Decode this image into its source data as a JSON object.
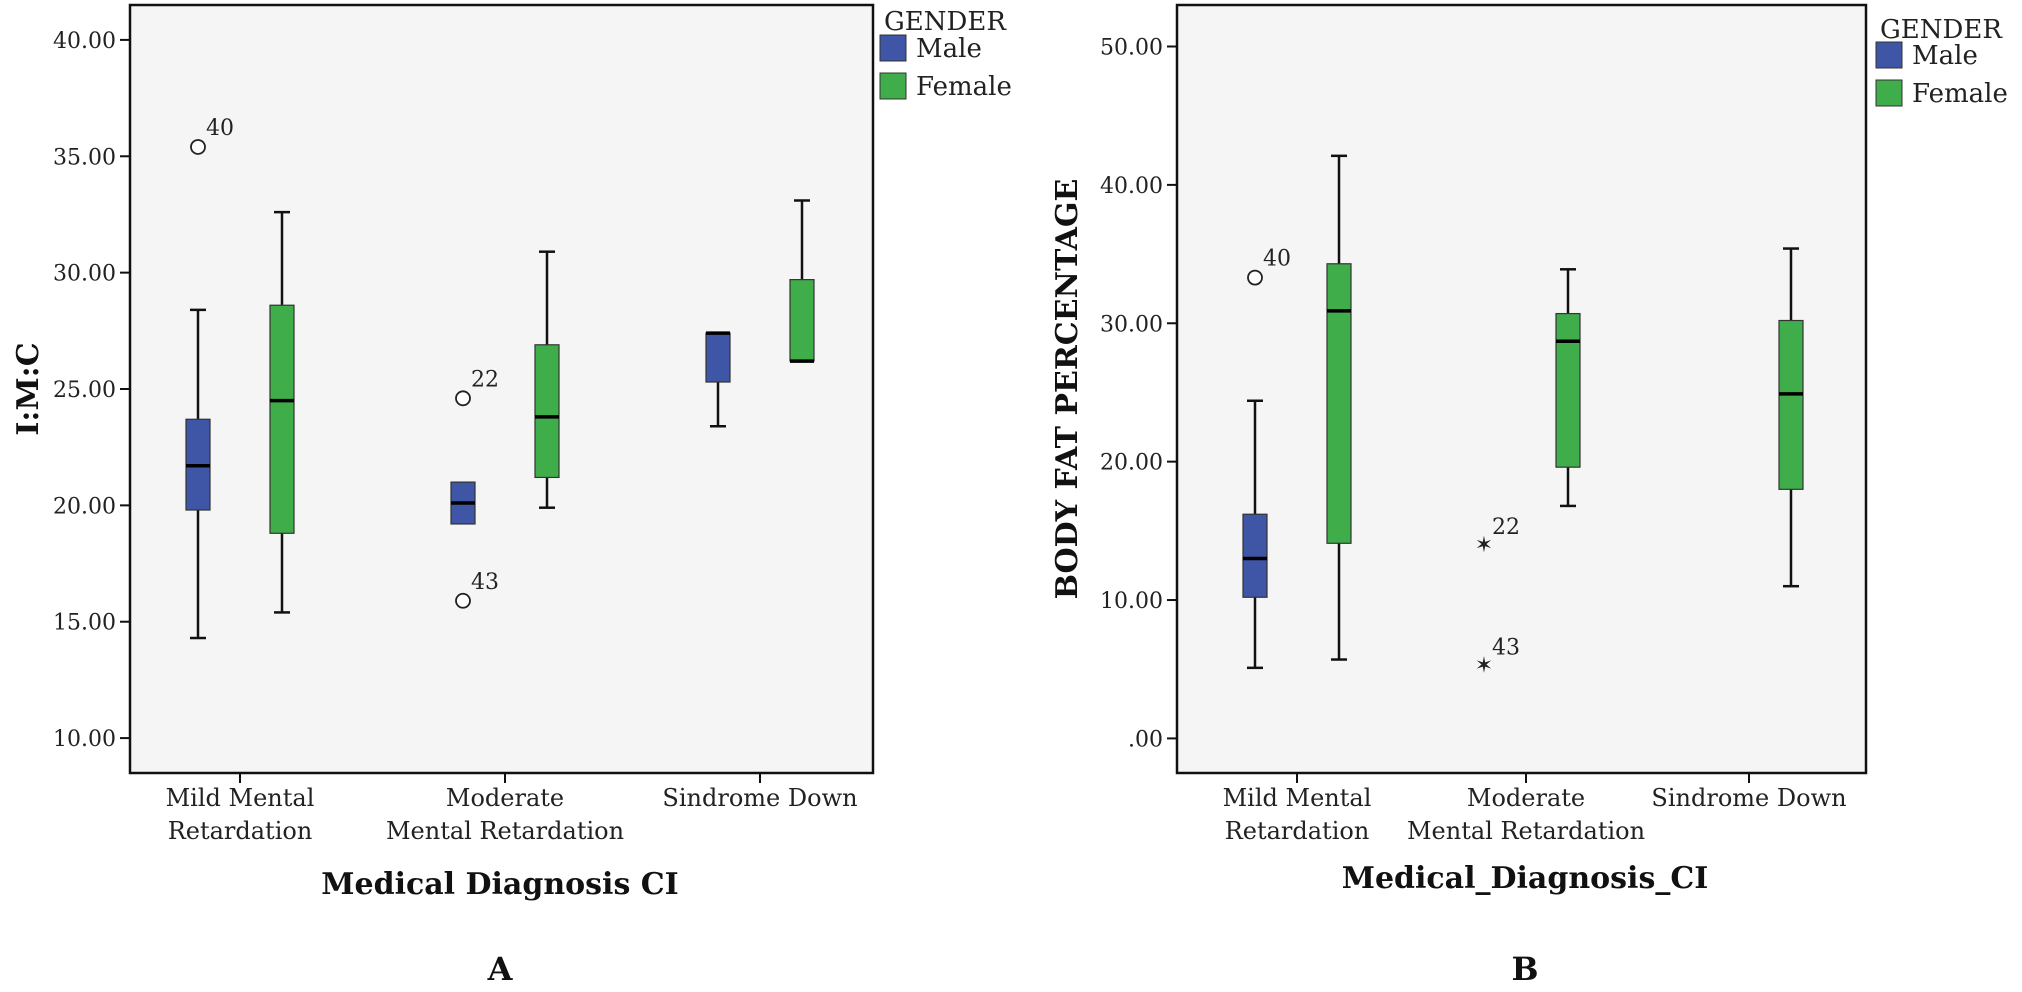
{
  "colors": {
    "male": "#3f55a6",
    "female": "#3fae4a",
    "plot_bg": "#f5f5f5",
    "axis": "#111111"
  },
  "chart_data": [
    {
      "type": "boxplot",
      "panel_label": "A",
      "ylabel": "I:M:C",
      "xlabel": "Medical Diagnosis CI",
      "ylim": [
        8.5,
        41.5
      ],
      "yticks": [
        10,
        15,
        20,
        25,
        30,
        35,
        40
      ],
      "ytick_labels": [
        "10.00",
        "15.00",
        "20.00",
        "25.00",
        "30.00",
        "35.00",
        "40.00"
      ],
      "categories": [
        {
          "lines": [
            "Mild Mental",
            "Retardation"
          ]
        },
        {
          "lines": [
            "Moderate",
            "Mental Retardation"
          ]
        },
        {
          "lines": [
            "Sindrome Down"
          ]
        }
      ],
      "legend": {
        "title": "GENDER",
        "items": [
          {
            "label": "Male",
            "key": "male"
          },
          {
            "label": "Female",
            "key": "female"
          }
        ]
      },
      "boxes": [
        {
          "category": 0,
          "series": "male",
          "min": 14.3,
          "q1": 19.8,
          "median": 21.7,
          "q3": 23.7,
          "max": 28.4
        },
        {
          "category": 0,
          "series": "female",
          "min": 15.4,
          "q1": 18.8,
          "median": 24.5,
          "q3": 28.6,
          "max": 32.6
        },
        {
          "category": 1,
          "series": "male",
          "min": 19.2,
          "q1": 19.2,
          "median": 20.1,
          "q3": 21.0,
          "max": 21.0
        },
        {
          "category": 1,
          "series": "female",
          "min": 19.9,
          "q1": 21.2,
          "median": 23.8,
          "q3": 26.9,
          "max": 30.9
        },
        {
          "category": 2,
          "series": "male",
          "min": 23.4,
          "q1": 25.3,
          "median": 27.4,
          "q3": 27.4,
          "max": 27.4
        },
        {
          "category": 2,
          "series": "female",
          "min": 26.2,
          "q1": 26.2,
          "median": 26.2,
          "q3": 29.7,
          "max": 33.1
        }
      ],
      "outliers": [
        {
          "category": 0,
          "series": "male",
          "value": 35.4,
          "label": "40",
          "symbol": "circle"
        },
        {
          "category": 1,
          "series": "male",
          "value": 24.6,
          "label": "22",
          "symbol": "circle"
        },
        {
          "category": 1,
          "series": "male",
          "value": 15.9,
          "label": "43",
          "symbol": "circle"
        }
      ]
    },
    {
      "type": "boxplot",
      "panel_label": "B",
      "ylabel": "BODY FAT PERCENTAGE",
      "xlabel": "Medical_Diagnosis_CI",
      "ylim": [
        -2.5,
        53
      ],
      "yticks": [
        0,
        10,
        20,
        30,
        40,
        50
      ],
      "ytick_labels": [
        ".00",
        "10.00",
        "20.00",
        "30.00",
        "40.00",
        "50.00"
      ],
      "categories": [
        {
          "lines": [
            "Mild Mental",
            "Retardation"
          ]
        },
        {
          "lines": [
            "Moderate",
            "Mental Retardation"
          ]
        },
        {
          "lines": [
            "Sindrome Down"
          ]
        }
      ],
      "legend": {
        "title": "GENDER",
        "items": [
          {
            "label": "Male",
            "key": "male"
          },
          {
            "label": "Female",
            "key": "female"
          }
        ]
      },
      "boxes": [
        {
          "category": 0,
          "series": "male",
          "min": 5.1,
          "q1": 10.2,
          "median": 13.0,
          "q3": 16.2,
          "max": 24.4
        },
        {
          "category": 0,
          "series": "female",
          "min": 5.7,
          "q1": 14.1,
          "median": 30.9,
          "q3": 34.3,
          "max": 42.1
        },
        {
          "category": 1,
          "series": "female",
          "min": 16.8,
          "q1": 19.6,
          "median": 28.7,
          "q3": 30.7,
          "max": 33.9
        },
        {
          "category": 2,
          "series": "female",
          "min": 11.0,
          "q1": 18.0,
          "median": 24.9,
          "q3": 30.2,
          "max": 35.4
        }
      ],
      "outliers": [
        {
          "category": 0,
          "series": "male",
          "value": 33.3,
          "label": "40",
          "symbol": "circle"
        },
        {
          "category": 1,
          "series": "male",
          "value": 13.9,
          "label": "22",
          "symbol": "star"
        },
        {
          "category": 1,
          "series": "male",
          "value": 5.2,
          "label": "43",
          "symbol": "star"
        }
      ]
    }
  ]
}
